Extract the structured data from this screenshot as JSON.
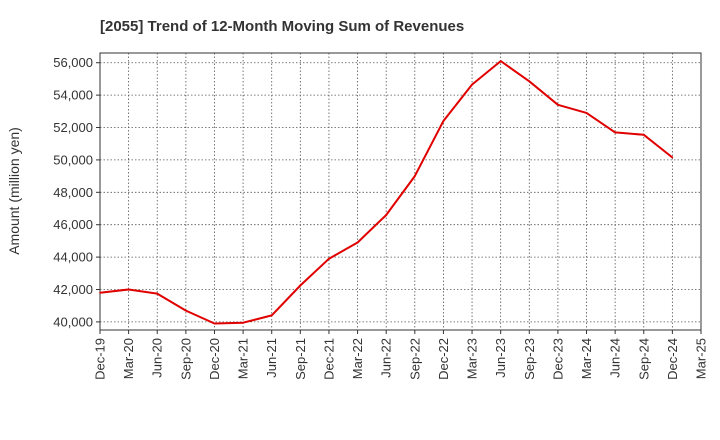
{
  "chart_data": {
    "type": "line",
    "title": "[2055]  Trend of 12-Month Moving Sum of Revenues",
    "ylabel": "Amount (million yen)",
    "xlabel": "",
    "x_ticks": [
      "Dec-19",
      "Mar-20",
      "Jun-20",
      "Sep-20",
      "Dec-20",
      "Mar-21",
      "Jun-21",
      "Sep-21",
      "Dec-21",
      "Mar-22",
      "Jun-22",
      "Sep-22",
      "Dec-22",
      "Mar-23",
      "Jun-23",
      "Sep-23",
      "Dec-23",
      "Mar-24",
      "Jun-24",
      "Sep-24",
      "Dec-24",
      "Mar-25"
    ],
    "y_ticks": [
      "40,000",
      "42,000",
      "44,000",
      "46,000",
      "48,000",
      "50,000",
      "52,000",
      "54,000",
      "56,000"
    ],
    "y_tick_values": [
      40000,
      42000,
      44000,
      46000,
      48000,
      50000,
      52000,
      54000,
      56000
    ],
    "ylim": [
      39500,
      56600
    ],
    "grid": true,
    "series": [
      {
        "color": "#e00000",
        "x": [
          "Dec-19",
          "Mar-20",
          "Jun-20",
          "Sep-20",
          "Dec-20",
          "Mar-21",
          "Jun-21",
          "Sep-21",
          "Dec-21",
          "Mar-22",
          "Jun-22",
          "Sep-22",
          "Dec-22",
          "Mar-23",
          "Jun-23",
          "Sep-23",
          "Dec-23",
          "Mar-24",
          "Jun-24",
          "Sep-24",
          "Dec-24"
        ],
        "values": [
          41800,
          42000,
          41750,
          40700,
          39900,
          39950,
          40400,
          42250,
          43900,
          44900,
          46600,
          49000,
          52400,
          54650,
          56100,
          54850,
          53400,
          52900,
          51700,
          51550,
          50150
        ]
      }
    ]
  }
}
